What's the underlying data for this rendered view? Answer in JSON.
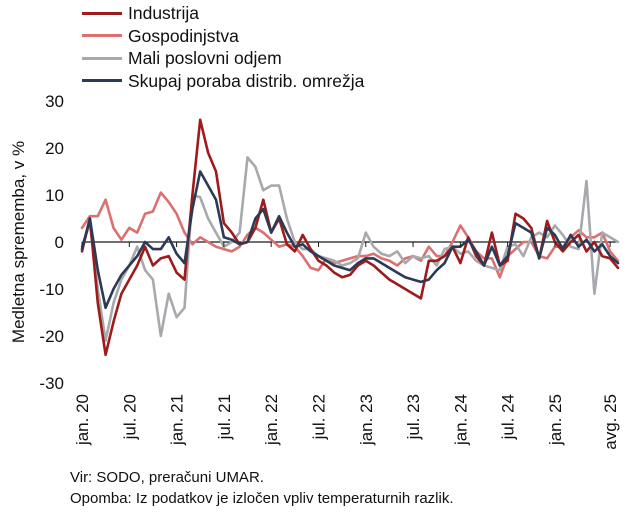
{
  "chart_data": {
    "type": "line",
    "title": "",
    "xlabel": "",
    "ylabel": "Medletna sprememba, v %",
    "ylim": [
      -30,
      30
    ],
    "yticks": [
      -30,
      -20,
      -10,
      0,
      10,
      20,
      30
    ],
    "x_tick_labels": [
      "jan. 20",
      "jul. 20",
      "jan. 21",
      "jul. 21",
      "jan. 22",
      "jul. 22",
      "jan. 23",
      "jul. 23",
      "jan. 24",
      "jul. 24",
      "jan. 25",
      "avg. 25"
    ],
    "x_tick_months": [
      0,
      6,
      12,
      18,
      24,
      30,
      36,
      42,
      48,
      54,
      60,
      67
    ],
    "zero_line": true,
    "legend_position": "top-left",
    "series": [
      {
        "name": "Industrija",
        "color": "#9e1b1b",
        "values": [
          -2,
          5,
          -13,
          -24,
          -17,
          -11,
          -8,
          -5,
          -1,
          -5,
          -3.5,
          -3,
          -6.5,
          -8,
          10,
          26,
          19,
          15,
          4,
          2,
          -0.5,
          0,
          3,
          9,
          2,
          5,
          -0.5,
          -2,
          1.5,
          -1.5,
          -4,
          -5,
          -6.5,
          -7.5,
          -7,
          -5,
          -4,
          -5,
          -6.5,
          -8,
          -9,
          -10,
          -11,
          -12,
          -4,
          -4,
          -3,
          -1,
          -4.5,
          1,
          -3,
          -5,
          2,
          -5,
          -4,
          6,
          5,
          3,
          -3.5,
          4.5,
          0,
          -2,
          0,
          1.5,
          -2,
          0,
          -3,
          -3.5,
          -5.5
        ]
      },
      {
        "name": "Gospodinjstva",
        "color": "#dc7070",
        "values": [
          3,
          5.5,
          5.5,
          9,
          3,
          0.5,
          3,
          2,
          6,
          6.5,
          10.5,
          8.5,
          6,
          2,
          -0.5,
          1,
          0,
          -1,
          -1.5,
          -2,
          -1,
          1.5,
          3,
          2,
          0.5,
          -1,
          -0.5,
          -1,
          -3,
          -5.5,
          -6,
          -3.5,
          -4.5,
          -4,
          -3.5,
          -3,
          -3,
          -2.5,
          -3.5,
          -4,
          -5,
          -3.5,
          -3,
          -4,
          -1,
          -3,
          -3,
          0,
          3.5,
          1,
          -2,
          -3.5,
          -3.5,
          -7.5,
          -3,
          -1.5,
          0,
          0,
          -3,
          -3.5,
          -1,
          -1,
          1,
          2.5,
          1,
          1,
          2,
          -2,
          -4
        ]
      },
      {
        "name": "Mali poslovni odjem",
        "color": "#a7a9ad",
        "values": [
          -1,
          4,
          -10,
          -21,
          -13,
          -8,
          -5,
          -1,
          -6,
          -8,
          -20,
          -11,
          -16,
          -14,
          10,
          9.5,
          5,
          2,
          -1,
          0,
          2,
          18,
          16,
          11,
          12,
          12,
          5,
          0,
          -1.5,
          -1.5,
          -3,
          -3.5,
          -4,
          -5,
          -4.5,
          -3.5,
          2,
          -1,
          -2.5,
          -3,
          -2,
          -4.5,
          -3,
          -3.5,
          -3,
          -5,
          -1.5,
          -1,
          -2.5,
          -2,
          -4,
          -5,
          -5.5,
          -6,
          -1,
          -0.5,
          -3,
          1,
          2,
          1,
          3.5,
          1.5,
          -1,
          -1.5,
          13,
          -11,
          2,
          1,
          0
        ]
      },
      {
        "name": "Skupaj poraba distrib. omrežja",
        "color": "#2b3a55",
        "values": [
          -1.5,
          5,
          -6,
          -14,
          -10,
          -7,
          -5,
          -3,
          0,
          -1.5,
          -1.5,
          1,
          -2.5,
          -4.5,
          7,
          15,
          12,
          9,
          1,
          0.5,
          -0.5,
          0,
          5,
          7,
          2,
          5.5,
          2,
          -1,
          -0.5,
          -2,
          -3,
          -4,
          -5,
          -5.5,
          -6,
          -4.5,
          -3.5,
          -3.5,
          -4.5,
          -5.5,
          -6.5,
          -7.5,
          -8,
          -8.5,
          -8,
          -6,
          -4.5,
          -1,
          -1,
          0.5,
          -2,
          -5,
          -1,
          -5,
          -3,
          4,
          3,
          2,
          -3.5,
          3,
          1.5,
          -1.5,
          1.5,
          -1,
          0.5,
          -2,
          -0.5,
          -3,
          -4.5
        ]
      }
    ]
  },
  "notes": {
    "source": "Vir: SODO, preračuni UMAR.",
    "remark": "Opomba: Iz podatkov je izločen vpliv temperaturnih razlik."
  }
}
